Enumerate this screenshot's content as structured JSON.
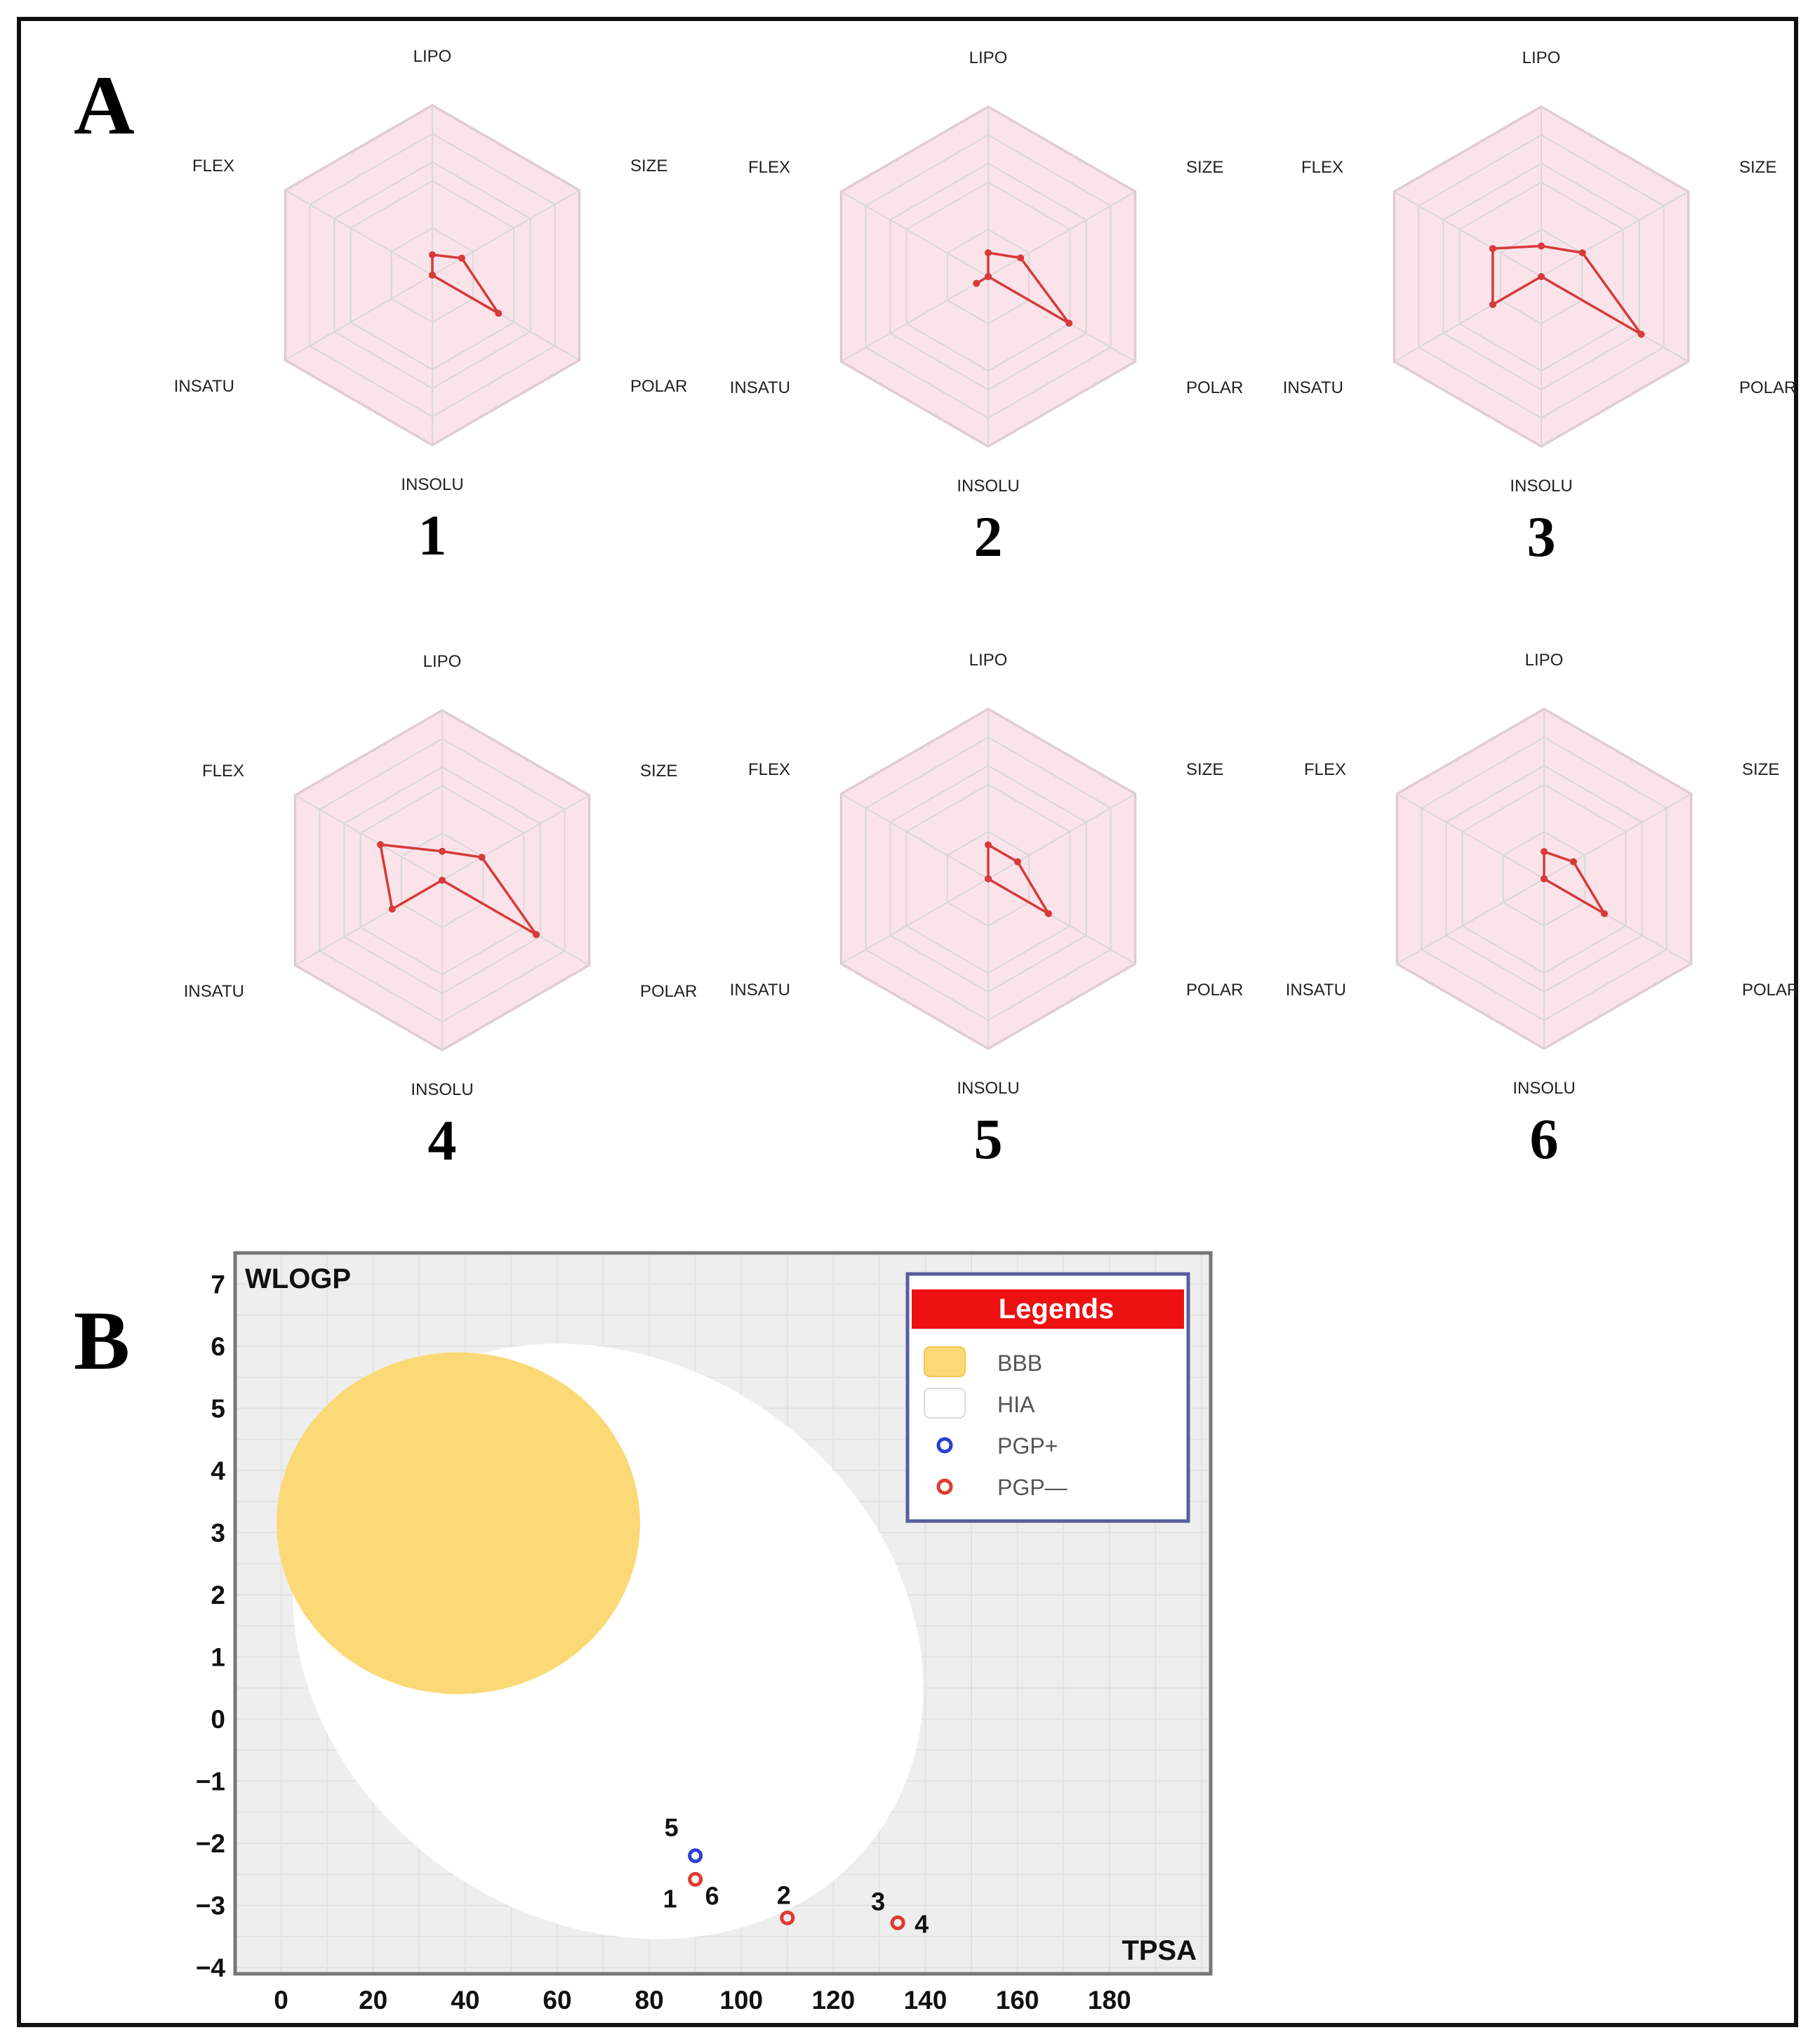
{
  "panel_a": {
    "label": "A",
    "axes": [
      "LIPO",
      "SIZE",
      "POLAR",
      "INSOLU",
      "INSATU",
      "FLEX"
    ]
  },
  "panel_b": {
    "label": "B"
  },
  "colors": {
    "radar_line": "#d63a3a",
    "optimal_fill": "#fbe3ea",
    "optimal_stroke": "#e4a3b3",
    "grid": "#d8d8d8",
    "plot_bg": "#eeeeee",
    "bbb": "#fcd977",
    "hia": "#ffffff",
    "pgp_plus": "#2b3fd6",
    "pgp_minus": "#e03a30",
    "legend_header": "#ee1111",
    "legend_border": "#55609a"
  },
  "chart_data": [
    {
      "type": "radar",
      "title": "1",
      "axes": [
        "LIPO",
        "SIZE",
        "POLAR",
        "INSOLU",
        "INSATU",
        "FLEX"
      ],
      "values": [
        0.12,
        0.2,
        0.45,
        0.0,
        0.0,
        0.0
      ],
      "optimal_range": [
        0.58,
        1.0
      ]
    },
    {
      "type": "radar",
      "title": "2",
      "axes": [
        "LIPO",
        "SIZE",
        "POLAR",
        "INSOLU",
        "INSATU",
        "FLEX"
      ],
      "values": [
        0.14,
        0.22,
        0.55,
        0.0,
        0.08,
        0.0
      ],
      "optimal_range": [
        0.58,
        1.0
      ]
    },
    {
      "type": "radar",
      "title": "3",
      "axes": [
        "LIPO",
        "SIZE",
        "POLAR",
        "INSOLU",
        "INSATU",
        "FLEX"
      ],
      "values": [
        0.18,
        0.28,
        0.68,
        0.0,
        0.33,
        0.33
      ],
      "optimal_range": [
        0.58,
        1.0
      ]
    },
    {
      "type": "radar",
      "title": "4",
      "axes": [
        "LIPO",
        "SIZE",
        "POLAR",
        "INSOLU",
        "INSATU",
        "FLEX"
      ],
      "values": [
        0.17,
        0.27,
        0.64,
        0.0,
        0.34,
        0.42
      ],
      "optimal_range": [
        0.58,
        1.0
      ]
    },
    {
      "type": "radar",
      "title": "5",
      "axes": [
        "LIPO",
        "SIZE",
        "POLAR",
        "INSOLU",
        "INSATU",
        "FLEX"
      ],
      "values": [
        0.2,
        0.2,
        0.41,
        0.0,
        0.0,
        0.0
      ],
      "optimal_range": [
        0.58,
        1.0
      ]
    },
    {
      "type": "radar",
      "title": "6",
      "axes": [
        "LIPO",
        "SIZE",
        "POLAR",
        "INSOLU",
        "INSATU",
        "FLEX"
      ],
      "values": [
        0.16,
        0.2,
        0.41,
        0.0,
        0.0,
        0.0
      ],
      "optimal_range": [
        0.58,
        1.0
      ]
    },
    {
      "type": "scatter",
      "title": "",
      "xlabel": "TPSA",
      "ylabel": "WLOGP",
      "xlim": [
        -10,
        202
      ],
      "ylim": [
        -4.1,
        7.5
      ],
      "xticks": [
        0,
        20,
        40,
        60,
        80,
        100,
        120,
        140,
        160,
        180
      ],
      "yticks": [
        7,
        6,
        5,
        4,
        3,
        2,
        1,
        0,
        -1,
        -2,
        -3,
        -4
      ],
      "ytick_labels": [
        "7",
        "6",
        "5",
        "4",
        "3",
        "2",
        "1",
        "0",
        "−1",
        "−2",
        "−3",
        "−4"
      ],
      "grid": true,
      "regions": [
        {
          "name": "HIA",
          "type": "ellipse",
          "cx": 71,
          "cy": 1.25,
          "rx": 72,
          "ry": 4.5,
          "rotation_deg": 35
        },
        {
          "name": "BBB",
          "type": "ellipse",
          "cx": 38.5,
          "cy": 3.15,
          "rx": 39.5,
          "ry": 2.75,
          "rotation_deg": 0
        }
      ],
      "points": [
        {
          "label": "5",
          "x": 90,
          "y": -2.2,
          "class": "PGP+"
        },
        {
          "label": "1",
          "x": 90,
          "y": -2.58,
          "class": "PGP—"
        },
        {
          "label": "6",
          "x": 90,
          "y": -2.58,
          "class": "PGP—"
        },
        {
          "label": "2",
          "x": 110,
          "y": -3.2,
          "class": "PGP—"
        },
        {
          "label": "3",
          "x": 134,
          "y": -3.28,
          "class": "PGP—"
        },
        {
          "label": "4",
          "x": 134,
          "y": -3.28,
          "class": "PGP—"
        }
      ],
      "legend": {
        "title": "Legends",
        "position": "top-right",
        "items": [
          {
            "label": "BBB",
            "kind": "swatch-yellow"
          },
          {
            "label": "HIA",
            "kind": "swatch-white"
          },
          {
            "label": "PGP+",
            "kind": "circle-blue"
          },
          {
            "label": "PGP—",
            "kind": "circle-red"
          }
        ]
      }
    }
  ]
}
